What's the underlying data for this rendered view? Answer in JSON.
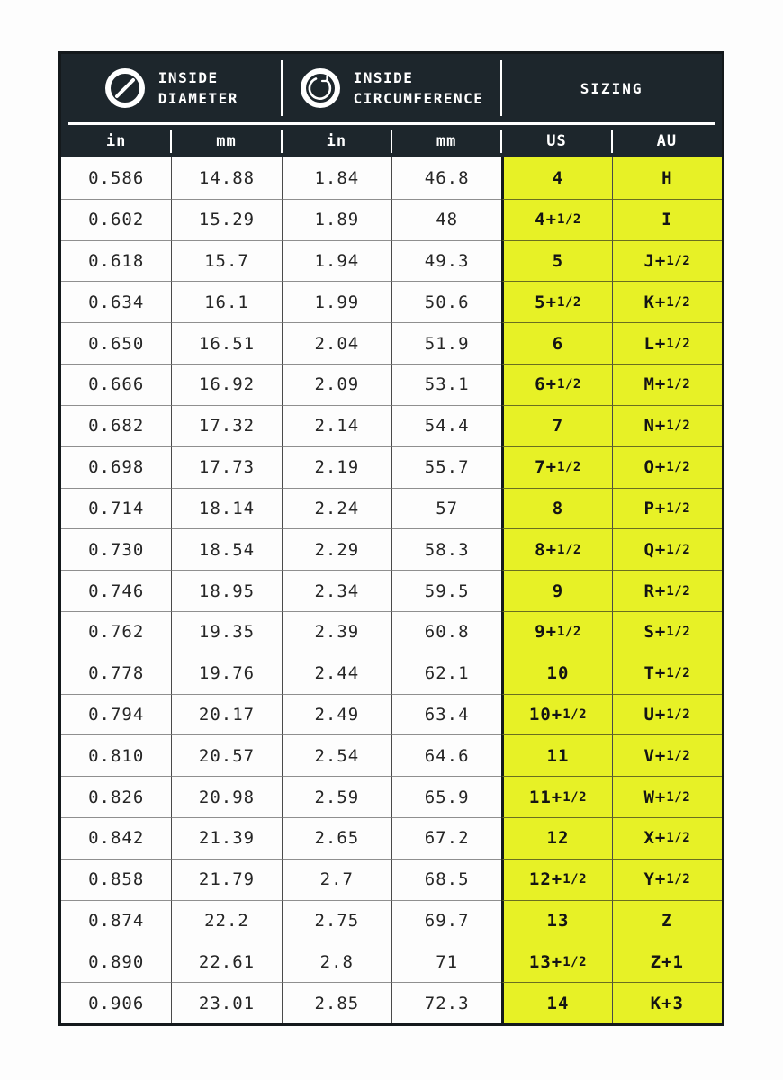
{
  "header": {
    "diameter": {
      "line1": "INSIDE",
      "line2": "DIAMETER",
      "icon": "diameter-icon"
    },
    "circumference": {
      "line1": "INSIDE",
      "line2": "CIRCUMFERENCE",
      "icon": "circumference-icon"
    },
    "sizing": "SIZING",
    "units": [
      "in",
      "mm",
      "in",
      "mm",
      "US",
      "AU"
    ]
  },
  "colors": {
    "header_dark": "#1d262c",
    "accent_yellow": "#e7f126",
    "border_black": "#14191c"
  },
  "chart_data": {
    "type": "table",
    "title": "Ring size conversion chart",
    "column_groups": [
      {
        "label": "INSIDE DIAMETER",
        "icon": "diameter-icon",
        "span": 2
      },
      {
        "label": "INSIDE CIRCUMFERENCE",
        "icon": "circumference-icon",
        "span": 2
      },
      {
        "label": "SIZING",
        "span": 2
      }
    ],
    "columns": [
      "in",
      "mm",
      "in",
      "mm",
      "US",
      "AU"
    ],
    "rows": [
      [
        "0.586",
        "14.88",
        "1.84",
        "46.8",
        "4",
        "H"
      ],
      [
        "0.602",
        "15.29",
        "1.89",
        "48",
        "4+1/2",
        "I"
      ],
      [
        "0.618",
        "15.7",
        "1.94",
        "49.3",
        "5",
        "J+1/2"
      ],
      [
        "0.634",
        "16.1",
        "1.99",
        "50.6",
        "5+1/2",
        "K+1/2"
      ],
      [
        "0.650",
        "16.51",
        "2.04",
        "51.9",
        "6",
        "L+1/2"
      ],
      [
        "0.666",
        "16.92",
        "2.09",
        "53.1",
        "6+1/2",
        "M+1/2"
      ],
      [
        "0.682",
        "17.32",
        "2.14",
        "54.4",
        "7",
        "N+1/2"
      ],
      [
        "0.698",
        "17.73",
        "2.19",
        "55.7",
        "7+1/2",
        "O+1/2"
      ],
      [
        "0.714",
        "18.14",
        "2.24",
        "57",
        "8",
        "P+1/2"
      ],
      [
        "0.730",
        "18.54",
        "2.29",
        "58.3",
        "8+1/2",
        "Q+1/2"
      ],
      [
        "0.746",
        "18.95",
        "2.34",
        "59.5",
        "9",
        "R+1/2"
      ],
      [
        "0.762",
        "19.35",
        "2.39",
        "60.8",
        "9+1/2",
        "S+1/2"
      ],
      [
        "0.778",
        "19.76",
        "2.44",
        "62.1",
        "10",
        "T+1/2"
      ],
      [
        "0.794",
        "20.17",
        "2.49",
        "63.4",
        "10+1/2",
        "U+1/2"
      ],
      [
        "0.810",
        "20.57",
        "2.54",
        "64.6",
        "11",
        "V+1/2"
      ],
      [
        "0.826",
        "20.98",
        "2.59",
        "65.9",
        "11+1/2",
        "W+1/2"
      ],
      [
        "0.842",
        "21.39",
        "2.65",
        "67.2",
        "12",
        "X+1/2"
      ],
      [
        "0.858",
        "21.79",
        "2.7",
        "68.5",
        "12+1/2",
        "Y+1/2"
      ],
      [
        "0.874",
        "22.2",
        "2.75",
        "69.7",
        "13",
        "Z"
      ],
      [
        "0.890",
        "22.61",
        "2.8",
        "71",
        "13+1/2",
        "Z+1"
      ],
      [
        "0.906",
        "23.01",
        "2.85",
        "72.3",
        "14",
        "K+3"
      ]
    ]
  }
}
